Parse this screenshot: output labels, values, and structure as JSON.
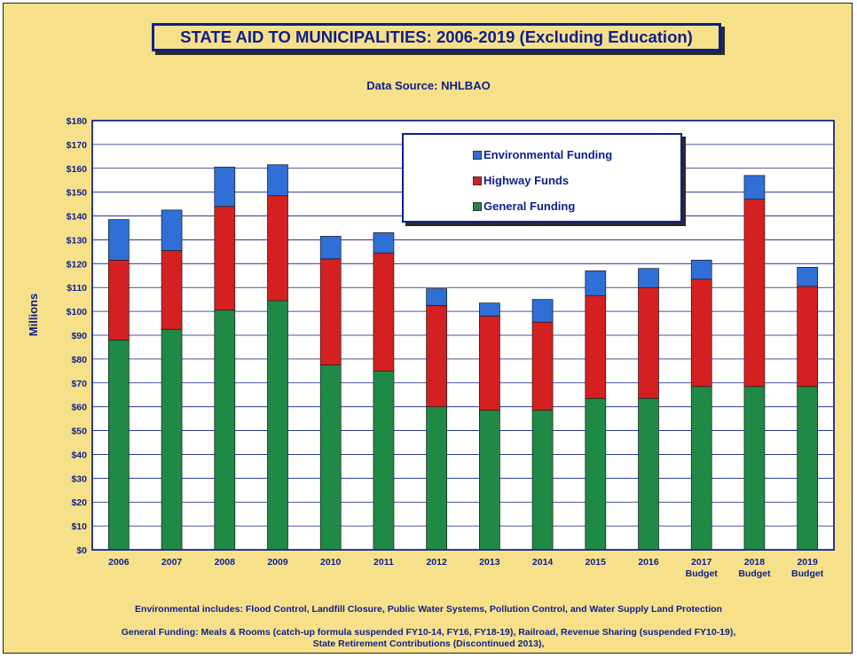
{
  "chart_data": {
    "type": "bar",
    "stacked": true,
    "title": "STATE AID TO MUNICIPALITIES:  2006-2019 (Excluding Education)",
    "subtitle": "Data Source:  NHLBAO",
    "ylabel": "Millions",
    "ylim": [
      0,
      180
    ],
    "yticks": [
      "$0",
      "$10",
      "$20",
      "$30",
      "$40",
      "$50",
      "$60",
      "$70",
      "$80",
      "$90",
      "$100",
      "$110",
      "$120",
      "$130",
      "$140",
      "$150",
      "$160",
      "$170",
      "$180"
    ],
    "grid": true,
    "legend_placement": "top-right",
    "categories": [
      [
        "2006"
      ],
      [
        "2007"
      ],
      [
        "2008"
      ],
      [
        "2009"
      ],
      [
        "2010"
      ],
      [
        "2011"
      ],
      [
        "2012"
      ],
      [
        "2013"
      ],
      [
        "2014"
      ],
      [
        "2015"
      ],
      [
        "2016"
      ],
      [
        "2017",
        "Budget"
      ],
      [
        "2018",
        "Budget"
      ],
      [
        "2019",
        "Budget"
      ]
    ],
    "series": [
      {
        "name": "General Funding",
        "color": "#1f8a46",
        "values": [
          88,
          92.5,
          100.5,
          104.5,
          77.5,
          75,
          60,
          58.5,
          58.5,
          63.5,
          63.5,
          68.5,
          68.5,
          68.5
        ]
      },
      {
        "name": "Highway Funds",
        "color": "#d42020",
        "values": [
          33.5,
          33,
          43.5,
          44,
          44.5,
          49.5,
          42.5,
          39.5,
          37,
          43,
          46.5,
          45,
          78.5,
          42
        ]
      },
      {
        "name": "Environmental Funding",
        "color": "#2f6fd6",
        "values": [
          17,
          17,
          16.5,
          13,
          9.5,
          8.5,
          7,
          5.5,
          9.5,
          10.5,
          8,
          8,
          10,
          8
        ]
      }
    ],
    "legend_order": [
      "Environmental Funding",
      "Highway Funds",
      "General Funding"
    ],
    "notes": [
      "Environmental includes:  Flood Control, Landfill Closure, Public Water Systems, Pollution Control, and Water Supply Land Protection",
      "General Funding: Meals & Rooms (catch-up formula suspended  FY10-14, FY16, FY18-19), Railroad, Revenue Sharing (suspended  FY10-19),",
      "State Retirement Contributions (Discontinued 2013),"
    ]
  }
}
